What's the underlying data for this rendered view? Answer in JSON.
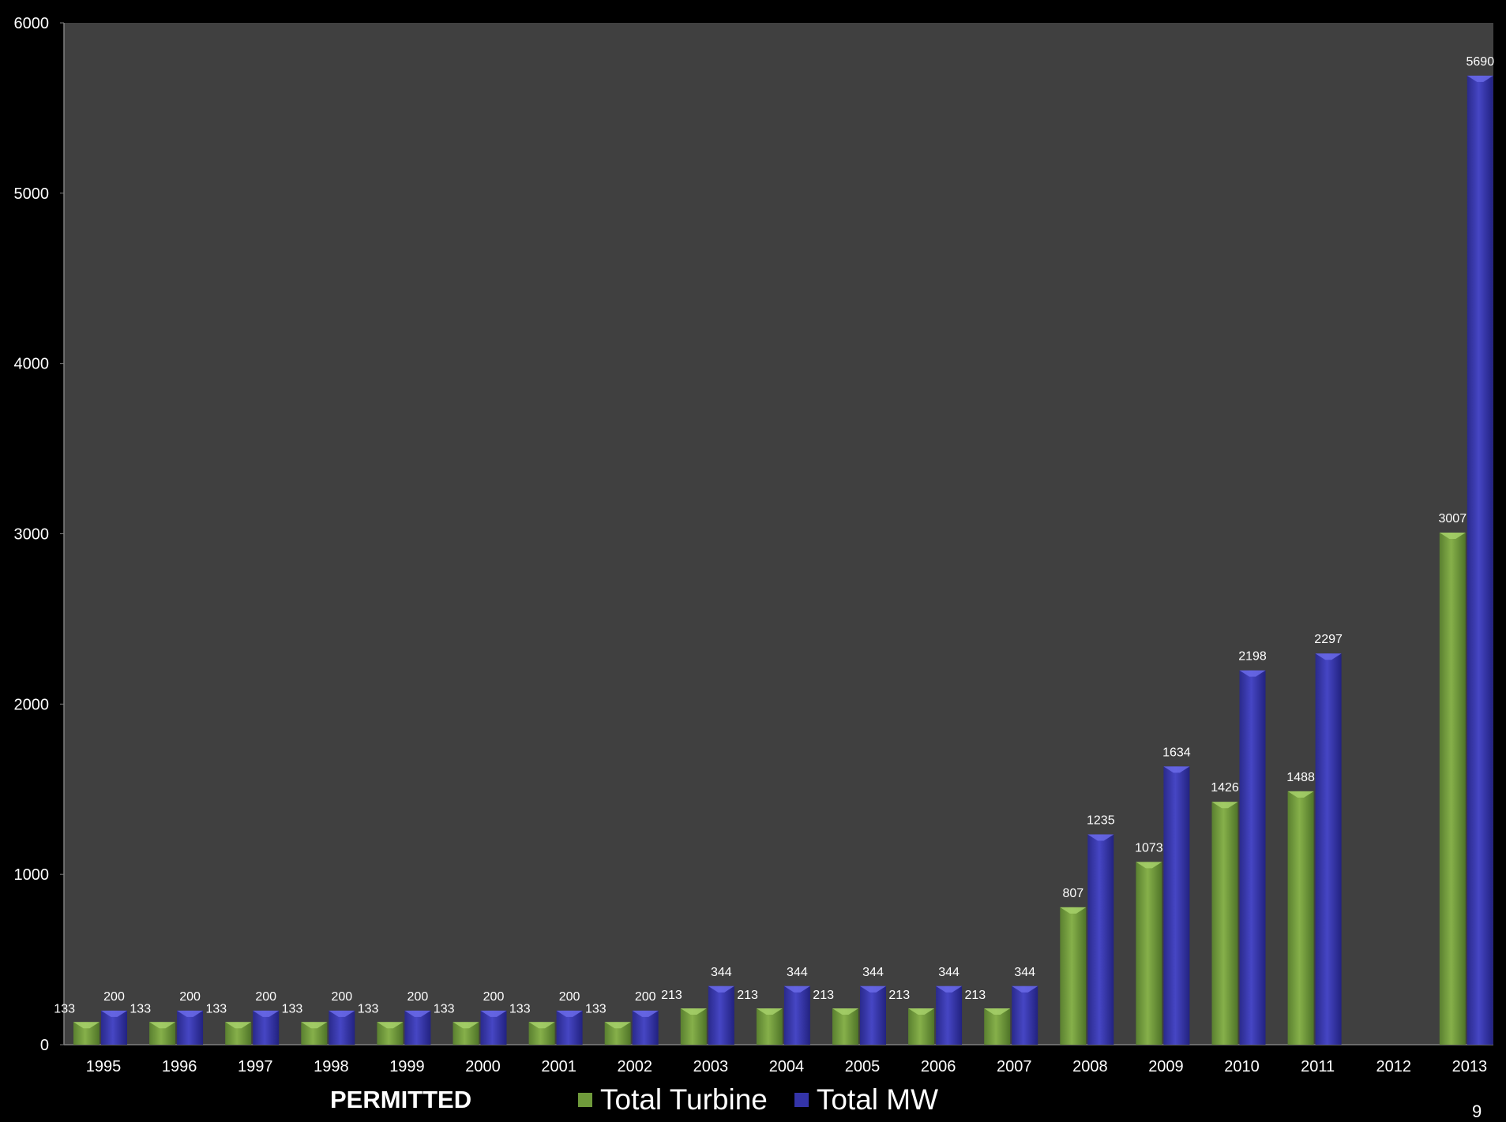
{
  "footer": {
    "caption": "PERMITTED",
    "page_number": "9"
  },
  "colors": {
    "background": "#000000",
    "plot_area": "#404040",
    "axis_line": "#808080",
    "text": "#ffffff",
    "turbine": "#6f9a3b",
    "mw": "#3434a8"
  },
  "chart_data": {
    "type": "bar",
    "title": "",
    "xlabel": "",
    "ylabel": "",
    "ylim": [
      0,
      6000
    ],
    "yticks": [
      0,
      1000,
      2000,
      3000,
      4000,
      5000,
      6000
    ],
    "grid": false,
    "legend_position": "bottom",
    "categories": [
      "1995",
      "1996",
      "1997",
      "1998",
      "1999",
      "2000",
      "2001",
      "2002",
      "2003",
      "2004",
      "2005",
      "2006",
      "2007",
      "2008",
      "2009",
      "2010",
      "2011",
      "2012",
      "2013"
    ],
    "series": [
      {
        "name": "Total Turbine",
        "color": "#6f9a3b",
        "values": [
          133,
          133,
          133,
          133,
          133,
          133,
          133,
          133,
          213,
          213,
          213,
          213,
          213,
          807,
          1073,
          1426,
          1488,
          null,
          3007
        ]
      },
      {
        "name": "Total MW",
        "color": "#3434a8",
        "values": [
          200,
          200,
          200,
          200,
          200,
          200,
          200,
          200,
          344,
          344,
          344,
          344,
          344,
          1235,
          1634,
          2198,
          2297,
          null,
          5690
        ]
      }
    ]
  }
}
